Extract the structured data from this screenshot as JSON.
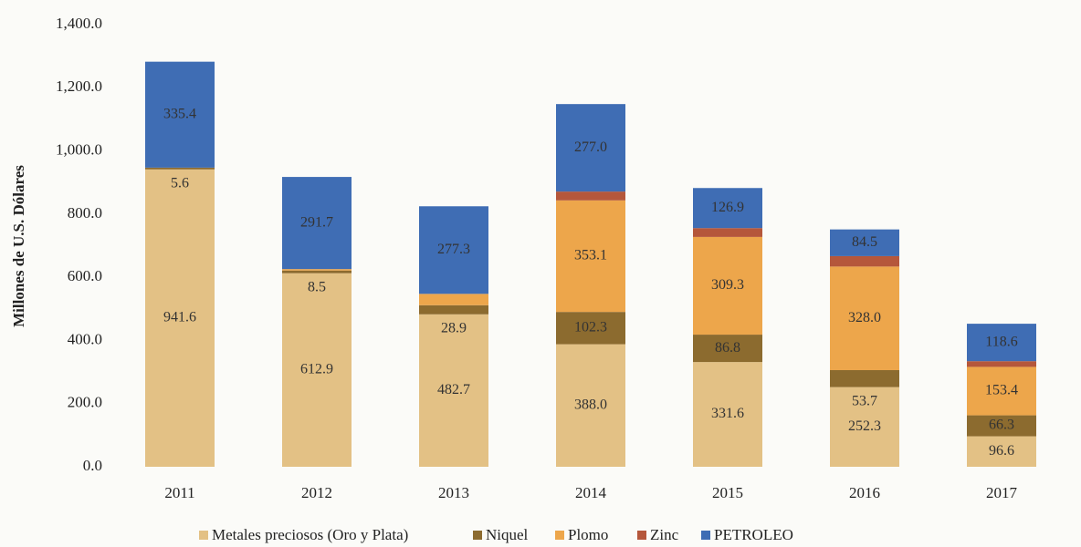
{
  "chart_data": {
    "type": "stacked_bar",
    "y_label": "Millones de U.S. Dólares",
    "categories": [
      "2011",
      "2012",
      "2013",
      "2014",
      "2015",
      "2016",
      "2017"
    ],
    "series": [
      {
        "name": "Metales preciosos (Oro y Plata)",
        "color": "#e3c185",
        "values": [
          941.6,
          612.9,
          482.7,
          388.0,
          331.6,
          252.3,
          96.6
        ],
        "value_labels": [
          "941.6",
          "612.9",
          "482.7",
          "388.0",
          "331.6",
          "252.3",
          "96.6"
        ]
      },
      {
        "name": "Niquel",
        "color": "#8c6b2f",
        "values": [
          5.6,
          8.5,
          28.9,
          102.3,
          86.8,
          53.7,
          66.3
        ],
        "value_labels": [
          "5.6",
          "8.5",
          "28.9",
          "102.3",
          "86.8",
          "53.7",
          "66.3"
        ]
      },
      {
        "name": "Plomo",
        "color": "#eda64b",
        "values": [
          null,
          4.6,
          35.9,
          353.1,
          309.3,
          328.0,
          153.4
        ],
        "value_labels": [
          null,
          "4.6",
          "35.9",
          "353.1",
          "309.3",
          "328.0",
          "153.4"
        ]
      },
      {
        "name": "Zinc",
        "color": "#b5573b",
        "values": [
          null,
          null,
          null,
          28,
          28,
          33,
          18
        ]
      },
      {
        "name": "PETROLEO",
        "color": "#3f6db4",
        "values": [
          335.4,
          291.7,
          277.3,
          277.0,
          126.9,
          84.5,
          118.6
        ],
        "value_labels": [
          "335.4",
          "291.7",
          "277.3",
          "277.0",
          "126.9",
          "84.5",
          "118.6"
        ]
      }
    ],
    "ylim": [
      0,
      1400
    ],
    "yticks": [
      {
        "value": 0,
        "label": "0.0"
      },
      {
        "value": 200,
        "label": "200.0"
      },
      {
        "value": 400,
        "label": "400.0"
      },
      {
        "value": 600,
        "label": "600.0"
      },
      {
        "value": 800,
        "label": "800.0"
      },
      {
        "value": 1000,
        "label": "1,000.0"
      },
      {
        "value": 1200,
        "label": "1,200.0"
      },
      {
        "value": 1400,
        "label": "1,400.0"
      }
    ],
    "legend": "bottom"
  }
}
